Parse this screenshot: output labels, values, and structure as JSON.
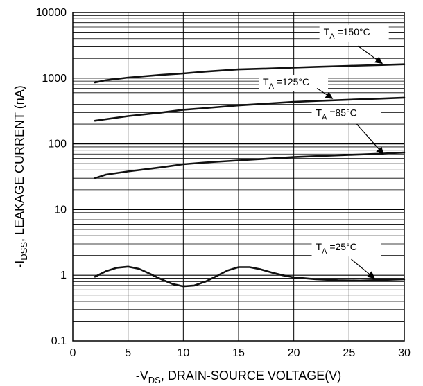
{
  "chart_data": {
    "type": "line",
    "xlabel": {
      "prefix": "-V",
      "sub": "DS",
      "rest": ", DRAIN-SOURCE VOLTAGE(V)"
    },
    "ylabel": {
      "prefix": "-I",
      "sub": "DSS",
      "rest": ", LEAKAGE CURRENT (nA)"
    },
    "xlim": [
      0,
      30
    ],
    "ylim": [
      0.1,
      10000
    ],
    "yscale": "log",
    "grid": true,
    "x_ticks": [
      {
        "value": 0,
        "label": "0"
      },
      {
        "value": 5,
        "label": "5"
      },
      {
        "value": 10,
        "label": "10"
      },
      {
        "value": 15,
        "label": "15"
      },
      {
        "value": 20,
        "label": "20"
      },
      {
        "value": 25,
        "label": "25"
      },
      {
        "value": 30,
        "label": "30"
      }
    ],
    "y_ticks": [
      {
        "value": 0.1,
        "label": "0.1"
      },
      {
        "value": 1,
        "label": "1"
      },
      {
        "value": 10,
        "label": "10"
      },
      {
        "value": 100,
        "label": "100"
      },
      {
        "value": 1000,
        "label": "1000"
      },
      {
        "value": 10000,
        "label": "10000"
      }
    ],
    "series": [
      {
        "label_main": "T",
        "label_sub": "A",
        "label_rest": " =150°C",
        "label_anchor": {
          "x": 22.7,
          "y": 4500
        },
        "arrow_from": {
          "x": 25.8,
          "y": 3100
        },
        "arrow_to": {
          "x": 28.0,
          "y": 1680
        },
        "x": [
          2,
          3,
          5,
          8,
          10,
          12,
          15,
          18,
          20,
          22,
          25,
          28,
          30
        ],
        "y": [
          860,
          930,
          1020,
          1120,
          1180,
          1260,
          1360,
          1410,
          1450,
          1490,
          1540,
          1590,
          1630
        ]
      },
      {
        "label_main": "T",
        "label_sub": "A",
        "label_rest": " =125°C",
        "label_anchor": {
          "x": 17.2,
          "y": 780
        },
        "arrow_from": {
          "x": 22.1,
          "y": 700
        },
        "arrow_to": {
          "x": 23.5,
          "y": 490
        },
        "x": [
          2,
          5,
          8,
          10,
          12,
          15,
          18,
          20,
          22,
          25,
          28,
          30
        ],
        "y": [
          225,
          265,
          300,
          330,
          350,
          385,
          415,
          435,
          450,
          470,
          490,
          505
        ]
      },
      {
        "label_main": "T",
        "label_sub": "A",
        "label_rest": " =85°C",
        "label_anchor": {
          "x": 22.0,
          "y": 265
        },
        "arrow_from": {
          "x": 25.7,
          "y": 200
        },
        "arrow_to": {
          "x": 28.1,
          "y": 70
        },
        "x": [
          2,
          3,
          5,
          8,
          10,
          12,
          15,
          18,
          20,
          22,
          25,
          28,
          30
        ],
        "y": [
          30,
          34,
          38,
          44,
          49,
          52,
          56,
          60,
          63,
          65,
          68,
          71,
          74
        ]
      },
      {
        "label_main": "T",
        "label_sub": "A",
        "label_rest": " =25°C",
        "label_anchor": {
          "x": 22.0,
          "y": 2.4
        },
        "arrow_from": {
          "x": 25.2,
          "y": 1.75
        },
        "arrow_to": {
          "x": 27.3,
          "y": 0.9
        },
        "x": [
          2,
          3,
          4,
          5,
          6,
          7,
          8,
          9,
          10,
          11,
          12,
          13,
          14,
          15,
          16,
          17,
          18,
          19,
          20,
          22,
          24,
          26,
          28,
          30
        ],
        "y": [
          0.95,
          1.15,
          1.3,
          1.35,
          1.25,
          1.05,
          0.87,
          0.74,
          0.68,
          0.7,
          0.8,
          0.97,
          1.18,
          1.33,
          1.33,
          1.23,
          1.1,
          1.0,
          0.93,
          0.87,
          0.84,
          0.83,
          0.85,
          0.87
        ]
      }
    ]
  }
}
